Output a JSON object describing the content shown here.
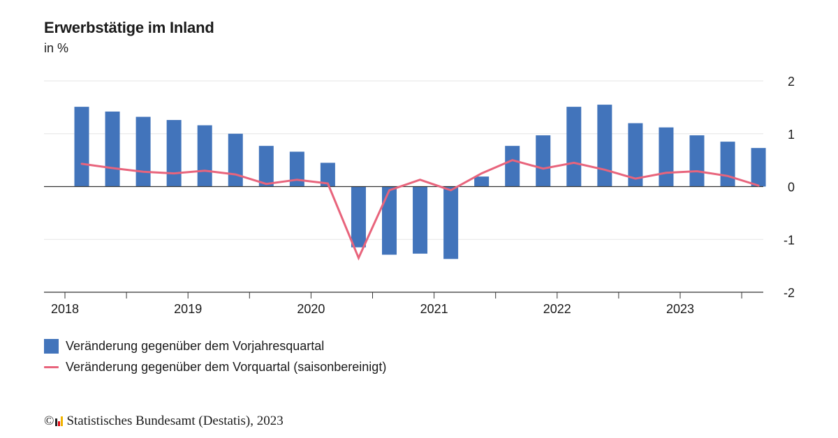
{
  "title": "Erwerbstätige im Inland",
  "subtitle": "in %",
  "legend": {
    "bar_label": "Veränderung gegenüber dem Vorjahresquartal",
    "line_label": "Veränderung gegenüber dem Vorquartal (saisonbereinigt)"
  },
  "footer": {
    "copyright": "©",
    "text": "Statistisches Bundesamt (Destatis), 2023"
  },
  "colors": {
    "bar": "#4274bb",
    "line": "#e8647c",
    "grid": "#e6e6e6",
    "axis": "#333333",
    "logo": [
      "#222222",
      "#e30613",
      "#f0b400"
    ]
  },
  "chart_data": {
    "type": "bar",
    "x_tick_labels": [
      "2018",
      "2019",
      "2020",
      "2021",
      "2022",
      "2023"
    ],
    "y_tick_labels": [
      "2",
      "1",
      "0",
      "-1",
      "-2"
    ],
    "ylim": [
      -2,
      2
    ],
    "y_ticks": [
      2,
      1,
      0,
      -1,
      -2
    ],
    "categories": [
      "2018 Q1",
      "2018 Q2",
      "2018 Q3",
      "2018 Q4",
      "2019 Q1",
      "2019 Q2",
      "2019 Q3",
      "2019 Q4",
      "2020 Q1",
      "2020 Q2",
      "2020 Q3",
      "2020 Q4",
      "2021 Q1",
      "2021 Q2",
      "2021 Q3",
      "2021 Q4",
      "2022 Q1",
      "2022 Q2",
      "2022 Q3",
      "2022 Q4",
      "2023 Q1",
      "2023 Q2",
      "2023 Q3"
    ],
    "series": [
      {
        "name": "Veränderung gegenüber dem Vorjahresquartal",
        "type": "bar",
        "values": [
          1.51,
          1.42,
          1.32,
          1.26,
          1.16,
          1.0,
          0.77,
          0.66,
          0.45,
          -1.15,
          -1.29,
          -1.27,
          -1.37,
          0.19,
          0.77,
          0.97,
          1.51,
          1.55,
          1.2,
          1.12,
          0.97,
          0.85,
          0.73
        ]
      },
      {
        "name": "Veränderung gegenüber dem Vorquartal (saisonbereinigt)",
        "type": "line",
        "values": [
          0.43,
          0.35,
          0.28,
          0.25,
          0.3,
          0.23,
          0.05,
          0.13,
          0.06,
          -1.35,
          -0.07,
          0.13,
          -0.07,
          0.25,
          0.5,
          0.34,
          0.45,
          0.32,
          0.15,
          0.26,
          0.29,
          0.2,
          0.02
        ]
      }
    ],
    "grid": true,
    "y_axis_position": "right",
    "legend_position": "bottom"
  }
}
